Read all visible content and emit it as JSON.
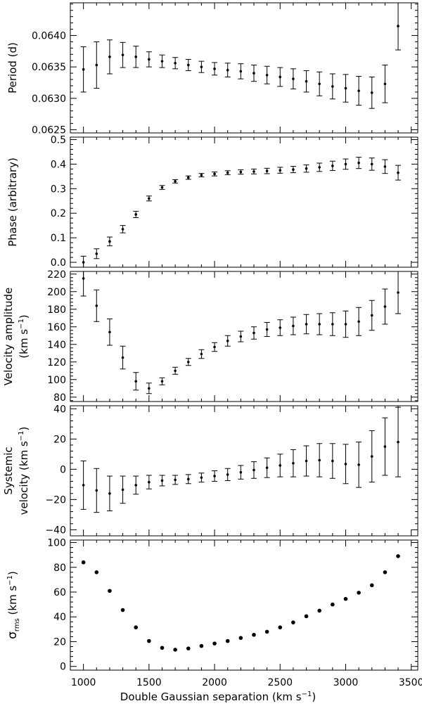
{
  "figure": {
    "xlabel": "Double Gaussian separation (km s",
    "xlabel_sup": "−1",
    "xlabel_tail": ")",
    "xticks": [
      "1000",
      "1500",
      "2000",
      "2500",
      "3000",
      "3500"
    ]
  },
  "chart_data": [
    {
      "type": "scatter",
      "ylabel_lines": [
        "Period (d)"
      ],
      "x": [
        1000,
        1100,
        1200,
        1300,
        1400,
        1500,
        1600,
        1700,
        1800,
        1900,
        2000,
        2100,
        2200,
        2300,
        2400,
        2500,
        2600,
        2700,
        2800,
        2900,
        3000,
        3100,
        3200,
        3300,
        3400
      ],
      "y": [
        0.06346,
        0.06353,
        0.06366,
        0.06369,
        0.06366,
        0.06362,
        0.06359,
        0.06356,
        0.06353,
        0.0635,
        0.06347,
        0.06345,
        0.06343,
        0.0634,
        0.06337,
        0.06334,
        0.06331,
        0.06327,
        0.06323,
        0.06319,
        0.06316,
        0.06312,
        0.06309,
        0.06323,
        0.06415
      ],
      "yerr": [
        0.00036,
        0.00037,
        0.00027,
        0.0002,
        0.00017,
        0.00012,
        0.0001,
        9e-05,
        9e-05,
        9e-05,
        0.0001,
        0.00011,
        0.00012,
        0.00013,
        0.00014,
        0.00015,
        0.00016,
        0.00017,
        0.00019,
        0.0002,
        0.00022,
        0.00023,
        0.00025,
        0.0003,
        0.00038
      ],
      "xlim": [
        900,
        3550
      ],
      "ylim": [
        0.06245,
        0.06452
      ],
      "yticks": [
        0.0625,
        0.063,
        0.0635,
        0.064
      ],
      "yticklabels": [
        "0.0625",
        "0.0630",
        "0.0635",
        "0.0640"
      ]
    },
    {
      "type": "scatter",
      "ylabel_lines": [
        "Phase (arbitrary)"
      ],
      "x": [
        1000,
        1100,
        1200,
        1300,
        1400,
        1500,
        1600,
        1700,
        1800,
        1900,
        2000,
        2100,
        2200,
        2300,
        2400,
        2500,
        2600,
        2700,
        2800,
        2900,
        3000,
        3100,
        3200,
        3300,
        3400
      ],
      "y": [
        0.0,
        0.035,
        0.085,
        0.135,
        0.195,
        0.26,
        0.305,
        0.33,
        0.345,
        0.355,
        0.36,
        0.365,
        0.368,
        0.37,
        0.372,
        0.375,
        0.378,
        0.382,
        0.387,
        0.393,
        0.4,
        0.405,
        0.4,
        0.39,
        0.365
      ],
      "yerr": [
        0.025,
        0.02,
        0.018,
        0.015,
        0.013,
        0.01,
        0.008,
        0.007,
        0.007,
        0.007,
        0.008,
        0.008,
        0.009,
        0.01,
        0.011,
        0.012,
        0.013,
        0.015,
        0.017,
        0.019,
        0.021,
        0.023,
        0.025,
        0.028,
        0.03
      ],
      "xlim": [
        900,
        3550
      ],
      "ylim": [
        -0.02,
        0.51
      ],
      "yticks": [
        0.0,
        0.1,
        0.2,
        0.3,
        0.4,
        0.5
      ],
      "yticklabels": [
        "0.0",
        "0.1",
        "0.2",
        "0.3",
        "0.4",
        "0.5"
      ]
    },
    {
      "type": "scatter",
      "ylabel_lines": [
        "Velocity amplitude",
        "(km s"
      ],
      "ylabel_sup": "−1",
      "ylabel_tail": ")",
      "x": [
        1000,
        1100,
        1200,
        1300,
        1400,
        1500,
        1600,
        1700,
        1800,
        1900,
        2000,
        2100,
        2200,
        2300,
        2400,
        2500,
        2600,
        2700,
        2800,
        2900,
        3000,
        3100,
        3200,
        3300,
        3400
      ],
      "y": [
        215,
        184,
        154,
        125,
        98,
        90,
        98,
        110,
        120,
        129,
        137,
        144,
        149,
        153,
        157,
        159,
        161,
        163,
        163,
        163,
        163,
        166,
        173,
        183,
        199
      ],
      "yerr": [
        20,
        18,
        15,
        13,
        10,
        6,
        4,
        4,
        4,
        5,
        5,
        6,
        6,
        7,
        8,
        9,
        10,
        11,
        12,
        13,
        15,
        16,
        17,
        20,
        24
      ],
      "xlim": [
        900,
        3550
      ],
      "ylim": [
        75,
        223
      ],
      "yticks": [
        80,
        100,
        120,
        140,
        160,
        180,
        200,
        220
      ],
      "yticklabels": [
        "80",
        "100",
        "120",
        "140",
        "160",
        "180",
        "200",
        "220"
      ]
    },
    {
      "type": "scatter",
      "ylabel_lines": [
        "Systemic",
        "velocity (km s"
      ],
      "ylabel_sup": "−1",
      "ylabel_tail": ")",
      "x": [
        1000,
        1100,
        1200,
        1300,
        1400,
        1500,
        1600,
        1700,
        1800,
        1900,
        2000,
        2100,
        2200,
        2300,
        2400,
        2500,
        2600,
        2700,
        2800,
        2900,
        3000,
        3100,
        3200,
        3300,
        3400
      ],
      "y": [
        -10.5,
        -14,
        -16,
        -13.5,
        -10.5,
        -8.5,
        -7.5,
        -7,
        -6.5,
        -5.5,
        -4.5,
        -3.5,
        -2,
        -0.5,
        1,
        2.5,
        4,
        5.5,
        6,
        5.5,
        3.5,
        3,
        8.5,
        15,
        18
      ],
      "yerr": [
        16,
        14.5,
        11.5,
        9,
        6,
        4.5,
        3.5,
        3,
        3,
        3,
        3.5,
        4,
        4.5,
        5.5,
        6.5,
        7.5,
        9,
        10,
        11,
        11.5,
        13,
        15,
        17,
        19,
        23
      ],
      "xlim": [
        900,
        3550
      ],
      "ylim": [
        -44,
        42
      ],
      "yticks": [
        -40,
        -20,
        0,
        20,
        40
      ],
      "yticklabels": [
        "−40",
        "−20",
        "0",
        "20",
        "40"
      ]
    },
    {
      "type": "scatter",
      "ylabel_symbol": "σ",
      "ylabel_sub": "rms",
      "ylabel_units": "(km s",
      "ylabel_sup": "−1",
      "ylabel_tail": ")",
      "x": [
        1000,
        1100,
        1200,
        1300,
        1400,
        1500,
        1600,
        1700,
        1800,
        1900,
        2000,
        2100,
        2200,
        2300,
        2400,
        2500,
        2600,
        2700,
        2800,
        2900,
        3000,
        3100,
        3200,
        3300,
        3400
      ],
      "y": [
        84,
        76,
        61,
        45.5,
        31.5,
        20.5,
        15,
        13.5,
        14.5,
        16.5,
        18.5,
        20.5,
        23,
        25.5,
        28,
        31.5,
        35.5,
        40.5,
        45,
        50,
        54.5,
        59.5,
        65.5,
        76,
        89
      ],
      "xlim": [
        900,
        3550
      ],
      "ylim": [
        -3,
        102
      ],
      "yticks": [
        0,
        20,
        40,
        60,
        80,
        100
      ],
      "yticklabels": [
        "0",
        "20",
        "40",
        "60",
        "80",
        "100"
      ]
    }
  ]
}
